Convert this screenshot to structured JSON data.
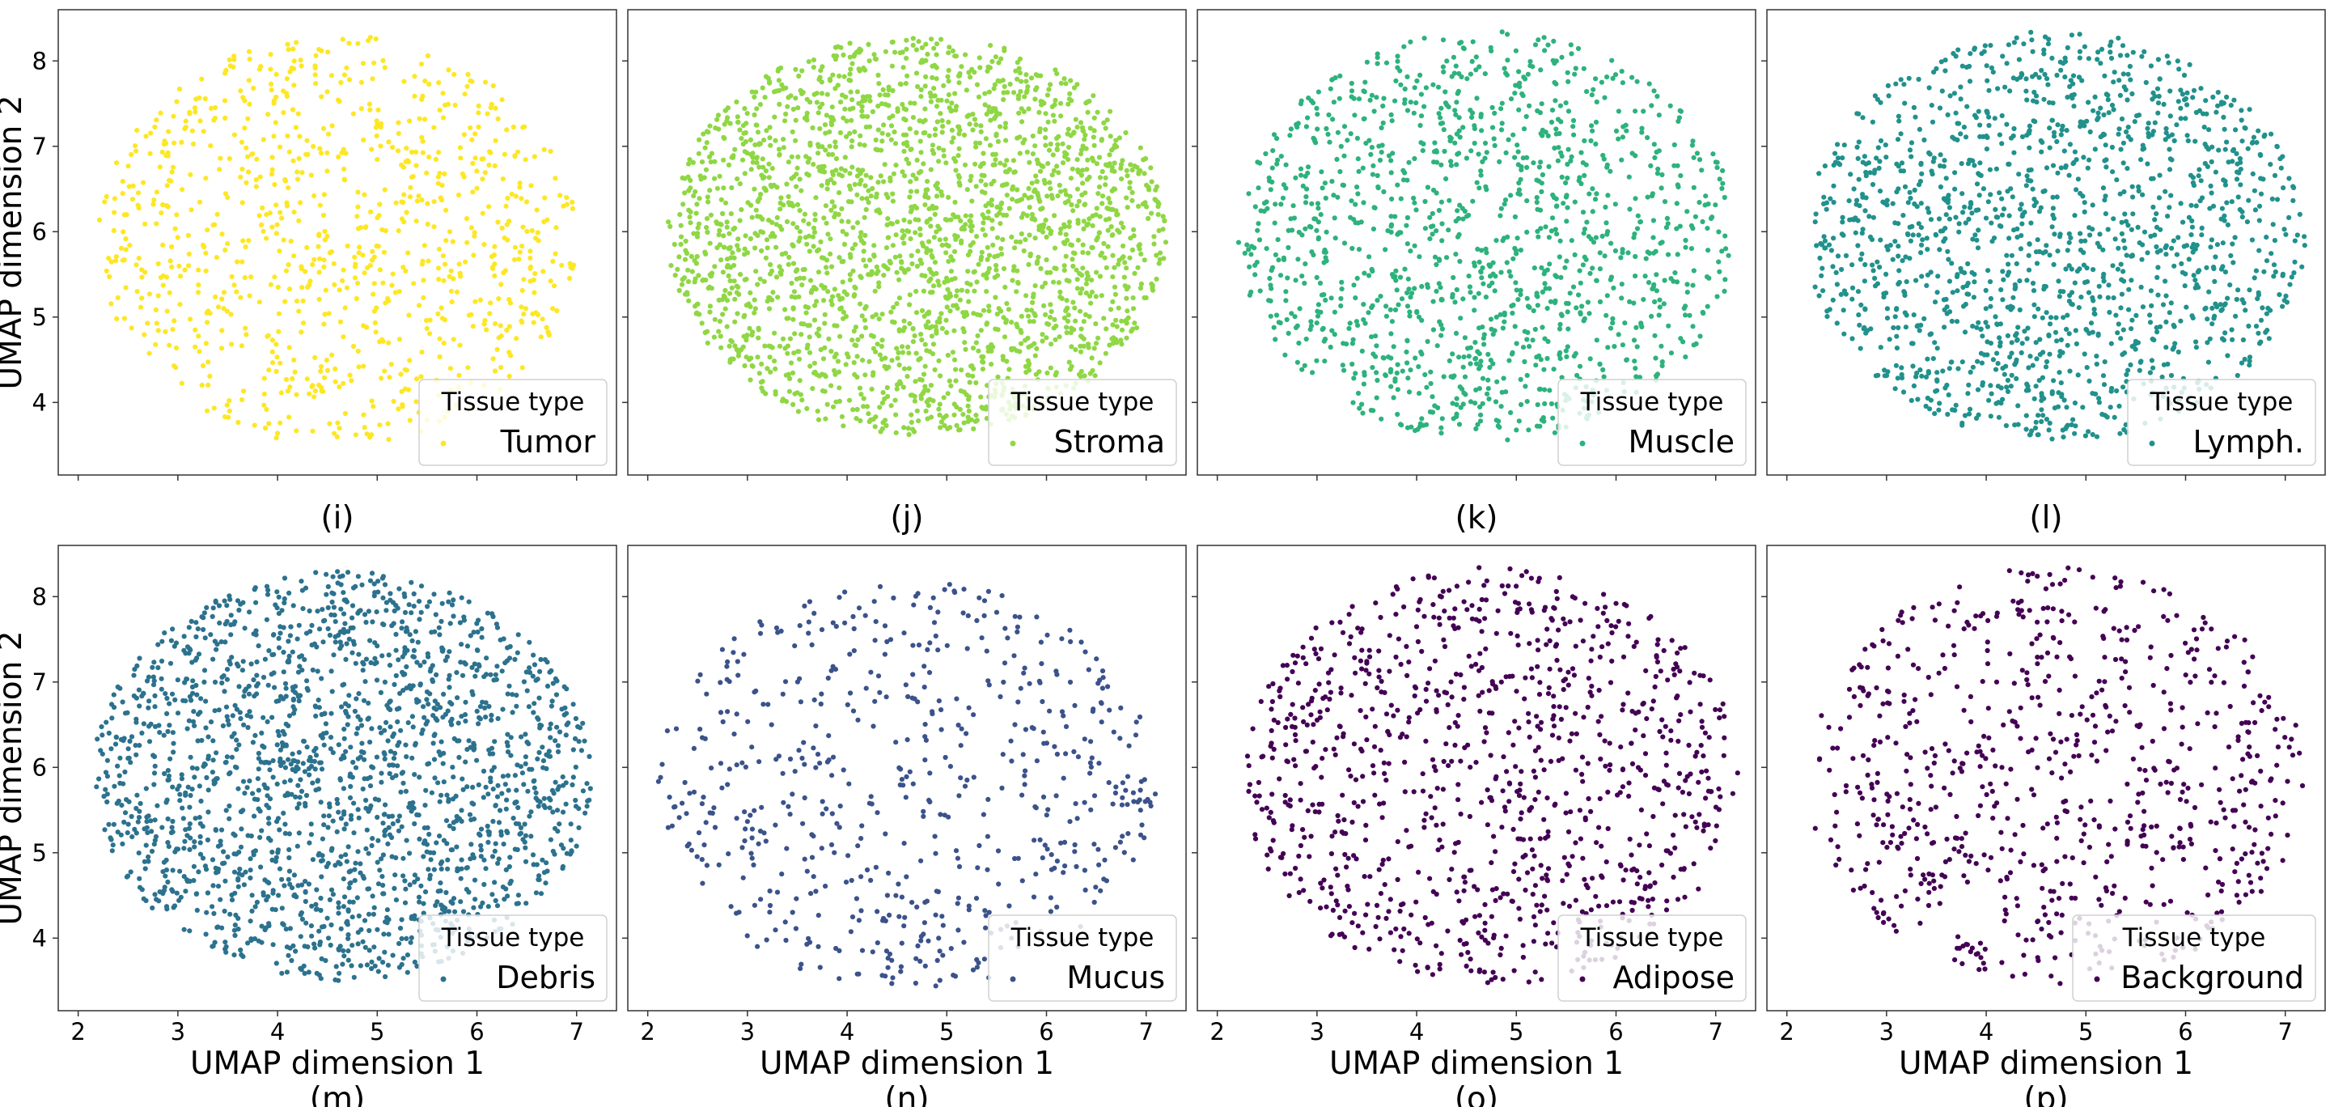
{
  "figure": {
    "legend_title": "Tissue type",
    "shared_xlabel": "UMAP dimension 1",
    "shared_ylabel": "UMAP dimension 2"
  },
  "chart_data": [
    {
      "type": "scatter",
      "panel": "i",
      "series_name": "Tumor",
      "color": "#fde725",
      "xlim": [
        1.8,
        7.4
      ],
      "ylim": [
        3.15,
        8.6
      ],
      "xticks": [
        2,
        3,
        4,
        5,
        6,
        7
      ],
      "yticks": [
        4,
        5,
        6,
        7,
        8
      ],
      "xlabel": "",
      "ylabel": "UMAP dimension 2",
      "caption": "(i)",
      "point_count": 900,
      "cloud": {
        "cx": 4.6,
        "cy": 5.9,
        "rx": 2.4,
        "ry": 2.4
      },
      "legend_placement": "lower right"
    },
    {
      "type": "scatter",
      "panel": "j",
      "series_name": "Stroma",
      "color": "#8fd744",
      "xlim": [
        1.8,
        7.4
      ],
      "ylim": [
        3.15,
        8.6
      ],
      "xticks": [
        2,
        3,
        4,
        5,
        6,
        7
      ],
      "yticks": [
        4,
        5,
        6,
        7,
        8
      ],
      "xlabel": "",
      "ylabel": "",
      "caption": "(j)",
      "point_count": 2300,
      "cloud": {
        "cx": 4.7,
        "cy": 5.95,
        "rx": 2.5,
        "ry": 2.35
      },
      "legend_placement": "lower right"
    },
    {
      "type": "scatter",
      "panel": "k",
      "series_name": "Muscle",
      "color": "#2db27d",
      "xlim": [
        1.8,
        7.4
      ],
      "ylim": [
        3.15,
        8.6
      ],
      "xticks": [
        2,
        3,
        4,
        5,
        6,
        7
      ],
      "yticks": [
        4,
        5,
        6,
        7,
        8
      ],
      "xlabel": "",
      "ylabel": "",
      "caption": "(k)",
      "point_count": 1300,
      "cloud": {
        "cx": 4.7,
        "cy": 5.95,
        "rx": 2.5,
        "ry": 2.4
      },
      "legend_placement": "lower right"
    },
    {
      "type": "scatter",
      "panel": "l",
      "series_name": "Lymph.",
      "color": "#21918c",
      "xlim": [
        1.8,
        7.4
      ],
      "ylim": [
        3.15,
        8.6
      ],
      "xticks": [
        2,
        3,
        4,
        5,
        6,
        7
      ],
      "yticks": [
        4,
        5,
        6,
        7,
        8
      ],
      "xlabel": "",
      "ylabel": "",
      "caption": "(l)",
      "point_count": 1500,
      "cloud": {
        "cx": 4.7,
        "cy": 5.95,
        "rx": 2.5,
        "ry": 2.4
      },
      "legend_placement": "lower right"
    },
    {
      "type": "scatter",
      "panel": "m",
      "series_name": "Debris",
      "color": "#2c728e",
      "xlim": [
        1.8,
        7.4
      ],
      "ylim": [
        3.15,
        8.6
      ],
      "xticks": [
        2,
        3,
        4,
        5,
        6,
        7
      ],
      "yticks": [
        4,
        5,
        6,
        7,
        8
      ],
      "xlabel": "UMAP dimension 1",
      "ylabel": "UMAP dimension 2",
      "caption": "(m)",
      "point_count": 1900,
      "cloud": {
        "cx": 4.65,
        "cy": 5.9,
        "rx": 2.5,
        "ry": 2.4
      },
      "legend_placement": "lower right"
    },
    {
      "type": "scatter",
      "panel": "n",
      "series_name": "Mucus",
      "color": "#3b528b",
      "xlim": [
        1.8,
        7.4
      ],
      "ylim": [
        3.15,
        8.6
      ],
      "xticks": [
        2,
        3,
        4,
        5,
        6,
        7
      ],
      "yticks": [
        4,
        5,
        6,
        7,
        8
      ],
      "xlabel": "UMAP dimension 1",
      "ylabel": "",
      "caption": "(n)",
      "point_count": 600,
      "cloud": {
        "cx": 4.6,
        "cy": 5.8,
        "rx": 2.5,
        "ry": 2.4
      },
      "legend_placement": "lower right"
    },
    {
      "type": "scatter",
      "panel": "o",
      "series_name": "Adipose",
      "color": "#440154",
      "xlim": [
        1.8,
        7.4
      ],
      "ylim": [
        3.15,
        8.6
      ],
      "xticks": [
        2,
        3,
        4,
        5,
        6,
        7
      ],
      "yticks": [
        4,
        5,
        6,
        7,
        8
      ],
      "xlabel": "UMAP dimension 1",
      "ylabel": "",
      "caption": "(o)",
      "point_count": 1000,
      "cloud": {
        "cx": 4.75,
        "cy": 5.9,
        "rx": 2.5,
        "ry": 2.45
      },
      "legend_placement": "lower right"
    },
    {
      "type": "scatter",
      "panel": "p",
      "series_name": "Background",
      "color": "#440154",
      "xlim": [
        1.8,
        7.4
      ],
      "ylim": [
        3.15,
        8.6
      ],
      "xticks": [
        2,
        3,
        4,
        5,
        6,
        7
      ],
      "yticks": [
        4,
        5,
        6,
        7,
        8
      ],
      "xlabel": "UMAP dimension 1",
      "ylabel": "",
      "caption": "(p)",
      "point_count": 750,
      "cloud": {
        "cx": 4.7,
        "cy": 5.9,
        "rx": 2.5,
        "ry": 2.45
      },
      "legend_placement": "lower right"
    }
  ]
}
